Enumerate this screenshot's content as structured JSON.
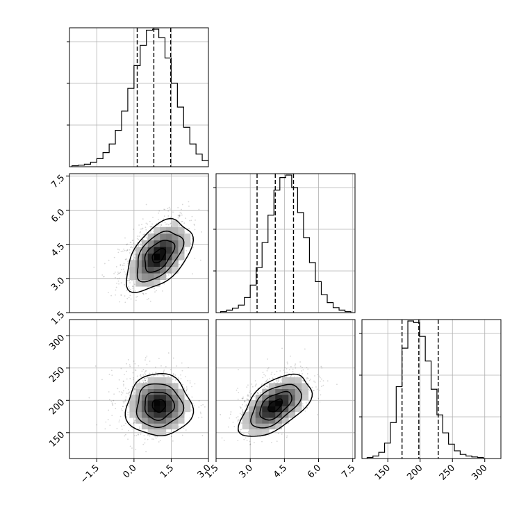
{
  "chart_data": {
    "type": "corner",
    "parameters": [
      {
        "range": [
          -2.6,
          3.0
        ],
        "ticks": [
          -1.5,
          0.0,
          1.5,
          3.0
        ],
        "tick_labels": [
          "−1.5",
          "0.0",
          "1.5",
          "3.0"
        ],
        "mean": 0.8,
        "sd": 0.66,
        "quantiles": [
          0.13,
          0.8,
          1.48
        ],
        "histogram": {
          "edges_start": -2.5,
          "bin_width": 0.25,
          "counts": [
            2,
            3,
            5,
            9,
            16,
            28,
            45,
            72,
            110,
            155,
            200,
            240,
            270,
            272,
            255,
            215,
            165,
            118,
            78,
            45,
            25,
            12,
            5,
            2
          ]
        }
      },
      {
        "range": [
          1.5,
          7.6
        ],
        "ticks": [
          1.5,
          3.0,
          4.5,
          6.0,
          7.5
        ],
        "tick_labels": [
          "1.5",
          "3.0",
          "4.5",
          "6.0",
          "7.5"
        ],
        "mean": 4.1,
        "sd": 0.78,
        "quantiles": [
          3.3,
          4.1,
          4.9
        ],
        "histogram": {
          "edges_start": 1.7,
          "bin_width": 0.26,
          "counts": [
            2,
            5,
            9,
            15,
            30,
            55,
            90,
            140,
            195,
            245,
            270,
            275,
            250,
            200,
            150,
            100,
            62,
            36,
            20,
            10,
            5,
            2
          ]
        }
      },
      {
        "range": [
          110,
          325
        ],
        "ticks": [
          150,
          200,
          250,
          300
        ],
        "tick_labels": [
          "150",
          "200",
          "250",
          "300"
        ],
        "mean": 200,
        "sd": 24,
        "quantiles": [
          172,
          198,
          228
        ],
        "histogram": {
          "edges_start": 118,
          "bin_width": 9,
          "counts": [
            2,
            5,
            12,
            30,
            70,
            140,
            215,
            268,
            265,
            238,
            190,
            135,
            85,
            50,
            28,
            15,
            8,
            5,
            3,
            2
          ]
        }
      }
    ],
    "pairs": [
      {
        "row": 1,
        "col": 0,
        "correlation": 0.5,
        "n_points": 1000,
        "peak": [
          1.0,
          4.0
        ],
        "contour_radii_sd": [
          0.4,
          0.9,
          1.4,
          2.0
        ]
      },
      {
        "row": 2,
        "col": 0,
        "correlation": 0.0,
        "n_points": 1000,
        "peak": [
          1.0,
          192
        ],
        "contour_radii_sd": [
          0.4,
          0.9,
          1.4,
          2.0
        ]
      },
      {
        "row": 2,
        "col": 1,
        "correlation": 0.55,
        "n_points": 1000,
        "peak": [
          4.1,
          192
        ],
        "contour_radii_sd": [
          0.4,
          0.9,
          1.4,
          2.0
        ]
      }
    ],
    "grid": true,
    "xlabel": "",
    "ylabel": "",
    "title": ""
  }
}
